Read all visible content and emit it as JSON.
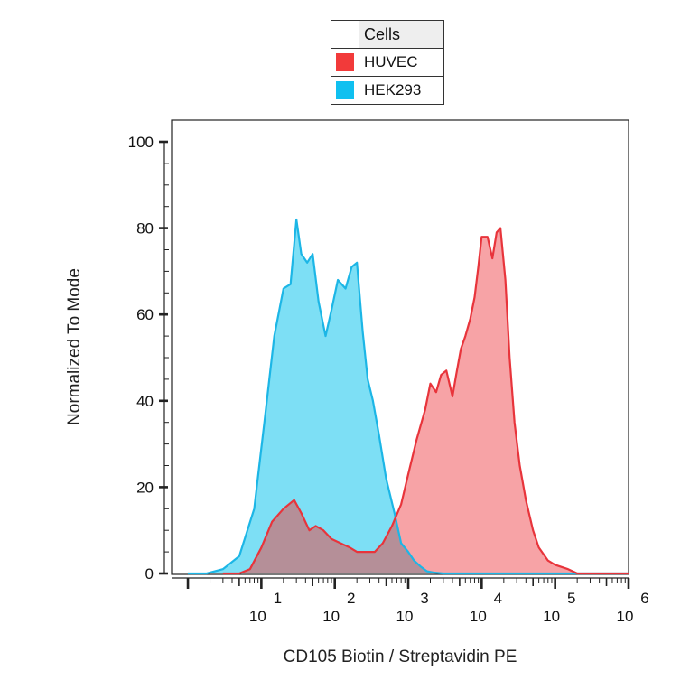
{
  "legend": {
    "title": "Cells",
    "entries": [
      {
        "name": "HUVEC",
        "color": "#f23a3a"
      },
      {
        "name": "HEK293",
        "color": "#10c0f0"
      }
    ]
  },
  "colors": {
    "huvec_fill": "#f7a3a6",
    "huvec_line": "#e8343b",
    "hek_fill": "#7ddff5",
    "hek_line": "#1cb6e6",
    "overlap_fill": "#b58f98"
  },
  "chart_data": {
    "type": "area",
    "xlabel": "CD105 Biotin / Streptavidin PE",
    "ylabel": "Normalized To Mode",
    "xscale": "log",
    "xlim": [
      0.6,
      1000000
    ],
    "ylim": [
      0,
      100
    ],
    "yticks": [
      0,
      20,
      40,
      60,
      80,
      100
    ],
    "xticks": [
      {
        "base": "10",
        "exp": "1",
        "value": 10
      },
      {
        "base": "10",
        "exp": "2",
        "value": 100
      },
      {
        "base": "10",
        "exp": "3",
        "value": 1000
      },
      {
        "base": "10",
        "exp": "4",
        "value": 10000
      },
      {
        "base": "10",
        "exp": "5",
        "value": 100000
      },
      {
        "base": "10",
        "exp": "6",
        "value": 1000000
      }
    ],
    "series": [
      {
        "name": "HUVEC",
        "x": [
          3,
          5,
          7,
          10,
          14,
          20,
          28,
          35,
          45,
          55,
          70,
          90,
          120,
          160,
          200,
          260,
          350,
          450,
          600,
          800,
          1000,
          1300,
          1700,
          2000,
          2400,
          2800,
          3300,
          4000,
          4500,
          5200,
          6000,
          7000,
          8000,
          9000,
          10000,
          12000,
          14000,
          16000,
          18000,
          21000,
          24000,
          28000,
          33000,
          40000,
          50000,
          60000,
          80000,
          100000,
          150000,
          200000,
          300000,
          500000,
          1000000
        ],
        "y": [
          0,
          0,
          1,
          6,
          12,
          15,
          17,
          14,
          10,
          11,
          10,
          8,
          7,
          6,
          5,
          5,
          5,
          7,
          11,
          16,
          23,
          31,
          38,
          44,
          42,
          46,
          47,
          41,
          46,
          52,
          55,
          59,
          64,
          71,
          78,
          78,
          73,
          79,
          80,
          68,
          50,
          35,
          25,
          17,
          10,
          6,
          3,
          2,
          1,
          0,
          0,
          0,
          0
        ]
      },
      {
        "name": "HEK293",
        "x": [
          1,
          1.8,
          3,
          5,
          8,
          11,
          15,
          20,
          25,
          30,
          35,
          42,
          50,
          60,
          75,
          90,
          110,
          140,
          170,
          200,
          240,
          280,
          330,
          400,
          500,
          650,
          800,
          1000,
          1200,
          1500,
          1800,
          2200,
          3000,
          5000,
          1000000
        ],
        "y": [
          0,
          0,
          1,
          4,
          15,
          35,
          55,
          66,
          67,
          82,
          74,
          72,
          74,
          63,
          55,
          61,
          68,
          66,
          71,
          72,
          56,
          45,
          40,
          32,
          22,
          14,
          7,
          5,
          3,
          1.5,
          0.5,
          0.2,
          0,
          0,
          0
        ]
      }
    ]
  }
}
